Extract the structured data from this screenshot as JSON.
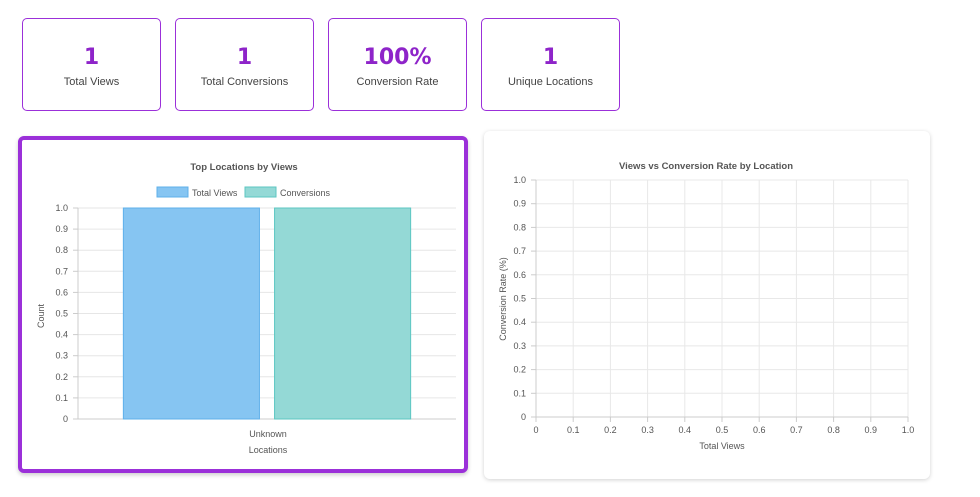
{
  "stats": [
    {
      "value": "1",
      "label": "Total Views"
    },
    {
      "value": "1",
      "label": "Total Conversions"
    },
    {
      "value": "100%",
      "label": "Conversion Rate"
    },
    {
      "value": "1",
      "label": "Unique Locations"
    }
  ],
  "colors": {
    "accent": "#9b30d9",
    "stat_value": "#8e24c9",
    "views_bar": "#86c5f2",
    "conversions_bar": "#94d9d6"
  },
  "chart_data": [
    {
      "type": "bar",
      "title": "Top Locations by Views",
      "xlabel": "Locations",
      "ylabel": "Count",
      "categories": [
        "Unknown"
      ],
      "series": [
        {
          "name": "Total Views",
          "values": [
            1
          ]
        },
        {
          "name": "Conversions",
          "values": [
            1
          ]
        }
      ],
      "ylim": [
        0,
        1
      ],
      "yticks": [
        "0",
        "0.1",
        "0.2",
        "0.3",
        "0.4",
        "0.5",
        "0.6",
        "0.7",
        "0.8",
        "0.9",
        "1.0"
      ],
      "legend": "top",
      "grid": true
    },
    {
      "type": "scatter",
      "title": "Views vs Conversion Rate by Location",
      "xlabel": "Total Views",
      "ylabel": "Conversion Rate (%)",
      "points": [],
      "xlim": [
        0,
        1
      ],
      "ylim": [
        0,
        1
      ],
      "xticks": [
        "0",
        "0.1",
        "0.2",
        "0.3",
        "0.4",
        "0.5",
        "0.6",
        "0.7",
        "0.8",
        "0.9",
        "1.0"
      ],
      "yticks": [
        "0",
        "0.1",
        "0.2",
        "0.3",
        "0.4",
        "0.5",
        "0.6",
        "0.7",
        "0.8",
        "0.9",
        "1.0"
      ],
      "grid": true
    }
  ]
}
